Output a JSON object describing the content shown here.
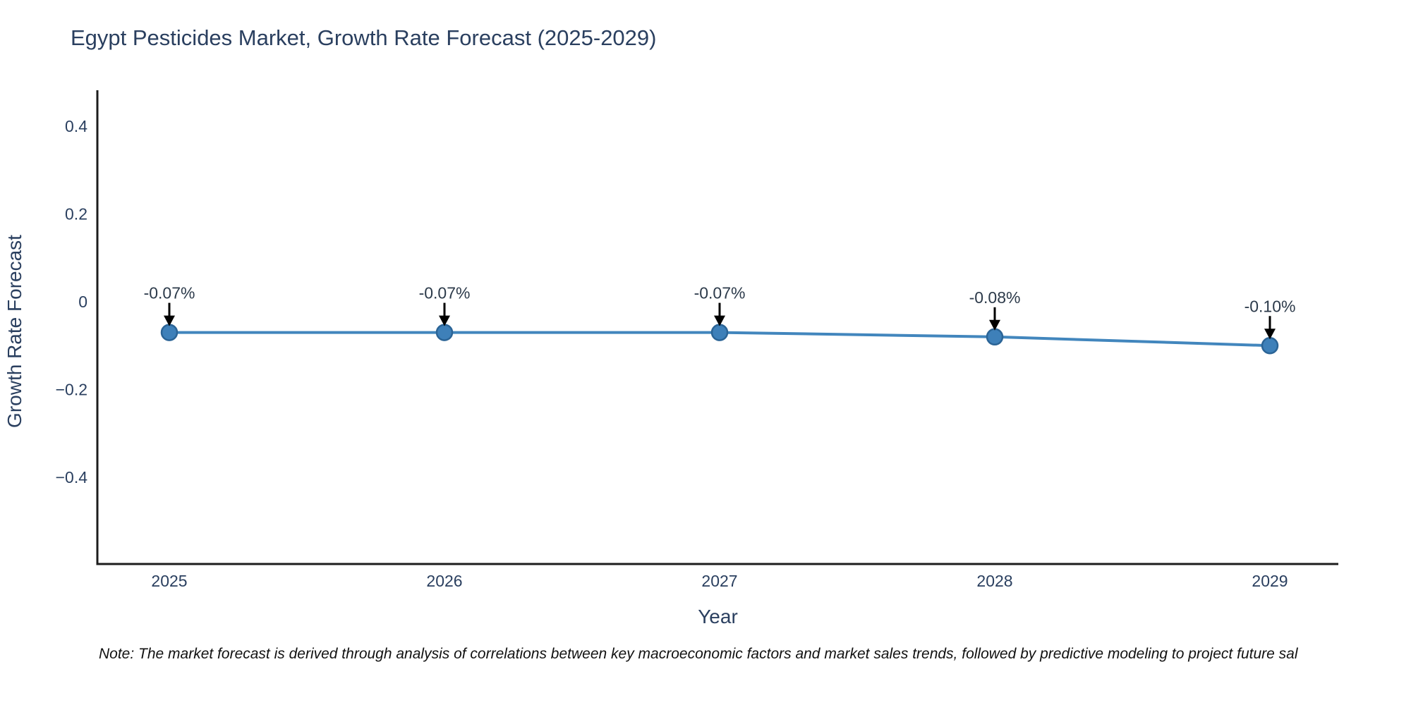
{
  "page": {
    "background": "#ffffff"
  },
  "chart_data": {
    "type": "line",
    "title": "Egypt Pesticides Market, Growth Rate Forecast (2025-2029)",
    "xlabel": "Year",
    "ylabel": "Growth Rate Forecast",
    "categories": [
      "2025",
      "2026",
      "2027",
      "2028",
      "2029"
    ],
    "series": [
      {
        "name": "Growth Rate Forecast",
        "values": [
          -0.07,
          -0.07,
          -0.07,
          -0.08,
          -0.1
        ]
      }
    ],
    "point_labels": [
      "-0.07%",
      "-0.07%",
      "-0.07%",
      "-0.08%",
      "-0.10%"
    ],
    "yticks": [
      0.4,
      0.2,
      0,
      -0.2,
      -0.4
    ],
    "ytick_labels": [
      "0.4",
      "0.2",
      "0",
      "−0.2",
      "−0.4"
    ],
    "ylim": [
      -0.6,
      0.48
    ],
    "grid": false,
    "legend_position": "none",
    "colors": {
      "line": "#4286bd",
      "marker_fill": "#3e80b9",
      "marker_edge": "#2b6496",
      "axis_line": "#1c1c1c",
      "axis_text": "#2a3f5f",
      "annotation_text": "#2c3a4a",
      "arrow": "#000000",
      "title_text": "#2a3f5f"
    }
  },
  "footnote": {
    "text": "Note: The market forecast is derived through analysis of correlations between key macroeconomic factors and market sales trends, followed by predictive modeling to project future sal"
  }
}
